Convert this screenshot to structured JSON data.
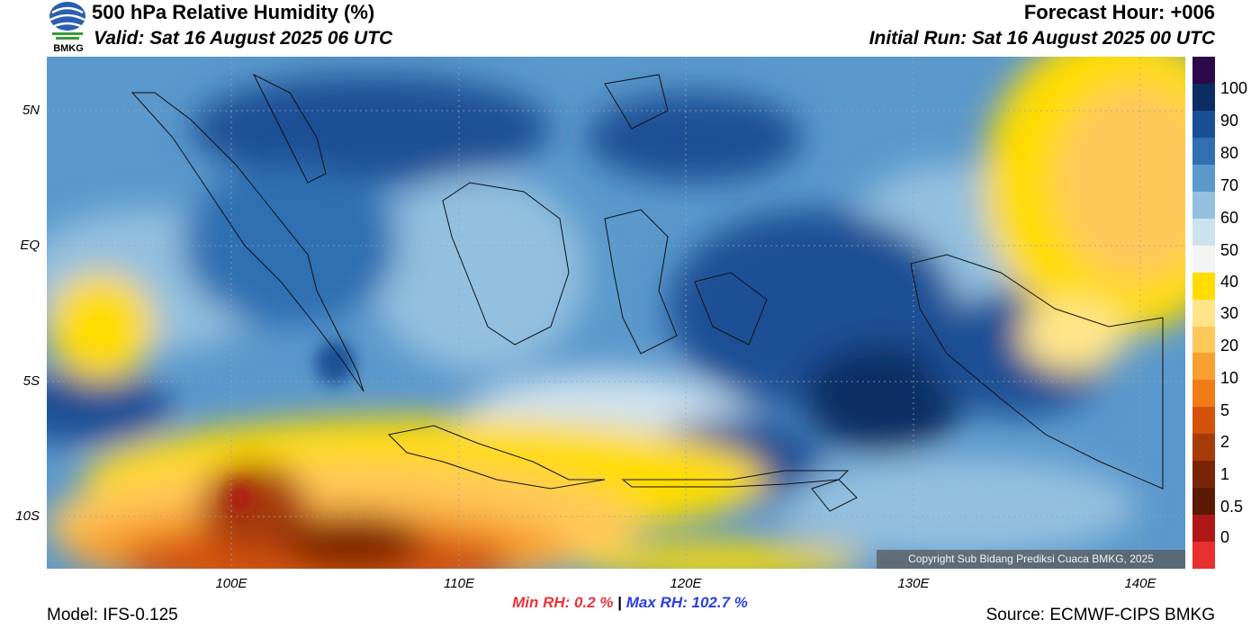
{
  "header": {
    "title": "500 hPa Relative Humidity (%)",
    "valid": "Valid: Sat 16 August 2025 06 UTC",
    "forecast_hour": "Forecast Hour: +006",
    "initial_run": "Initial Run: Sat 16 August 2025 00 UTC",
    "logo_text": "BMKG"
  },
  "map": {
    "lat_labels": [
      "5N",
      "EQ",
      "5S",
      "10S"
    ],
    "lon_labels": [
      "100E",
      "110E",
      "120E",
      "130E",
      "140E"
    ],
    "copyright": "Copyright Sub Bidang Prediksi Cuaca BMKG, 2025"
  },
  "colorbar": {
    "labels": [
      "100",
      "90",
      "80",
      "70",
      "60",
      "50",
      "40",
      "30",
      "20",
      "10",
      "5",
      "2",
      "1",
      "0.5",
      "0"
    ],
    "colors": [
      "#2c0a4a",
      "#0b2d63",
      "#1a4f95",
      "#2f6fb2",
      "#5b98cc",
      "#93c0df",
      "#cde2ef",
      "#f4f4f4",
      "#ffdc00",
      "#ffe58a",
      "#ffc85a",
      "#f8a030",
      "#f07c18",
      "#d4520c",
      "#a63a08",
      "#7a2406",
      "#5a1a04",
      "#b01818",
      "#e83030"
    ]
  },
  "stats": {
    "min_label": "Min RH:",
    "min_value": "0.2 %",
    "separator": "|",
    "max_label": "Max RH:",
    "max_value": "102.7 %"
  },
  "footer": {
    "model": "Model: IFS-0.125",
    "source": "Source: ECMWF-CIPS BMKG"
  }
}
